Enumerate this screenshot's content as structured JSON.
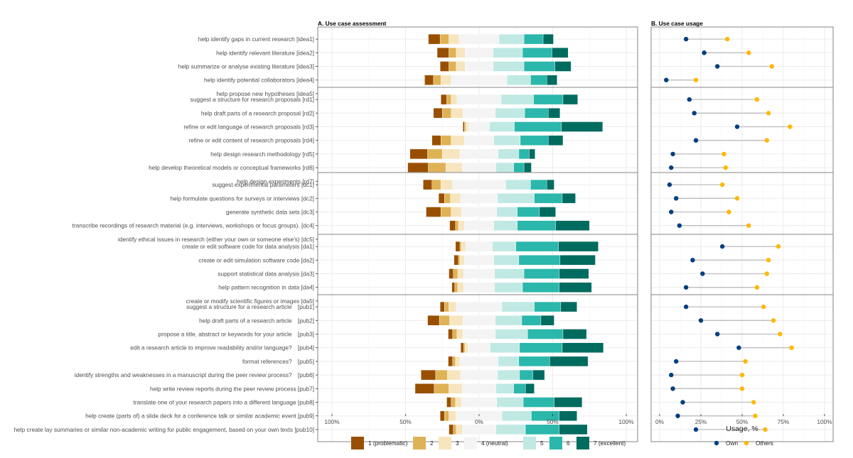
{
  "chart_data": [
    {
      "type": "bar",
      "subtype": "diverging-stacked-likert",
      "title": "A. Use case assessment",
      "xlabel": "",
      "xlim": [
        -100,
        100
      ],
      "xticks": [
        "100%",
        "50%",
        "0%",
        "50%",
        "100%"
      ],
      "legend_position": "bottom",
      "levels": [
        "1 (problematic)",
        "2",
        "3",
        "4 (neutral)",
        "5",
        "6",
        "7 (excellent)"
      ],
      "level_colors": [
        "#994f00",
        "#dfb256",
        "#f6e5bf",
        "#f4f4f4",
        "#c0e9e4",
        "#2bb7ab",
        "#006b5f"
      ],
      "groups": [
        {
          "name": "idea",
          "rows": [
            {
              "label": "help identify gaps in current research [idea1]",
              "values": [
                8,
                6,
                7,
                27,
                17,
                13,
                7
              ]
            },
            {
              "label": "help identify relevant literature [idea2]",
              "values": [
                8,
                5,
                6,
                19,
                20,
                20,
                11
              ]
            },
            {
              "label": "help summarize or analyse existing literature [idea3]",
              "values": [
                6,
                5,
                6,
                19,
                21,
                21,
                11
              ]
            },
            {
              "label": "help identify potential collaborators [idea4]",
              "values": [
                6,
                5,
                7,
                38,
                16,
                11,
                7
              ]
            },
            {
              "label": "help propose new hypotheses [idea5]",
              "values": [
                13,
                9,
                9,
                25,
                14,
                9,
                5
              ]
            }
          ]
        },
        {
          "name": "rd",
          "rows": [
            {
              "label": "suggest a structure for research proposals [rd1]",
              "values": [
                4,
                3,
                4,
                30,
                22,
                20,
                10
              ]
            },
            {
              "label": "help draft parts of a research proposal [rd2]",
              "values": [
                6,
                6,
                8,
                22,
                20,
                16,
                8
              ]
            },
            {
              "label": "refine or edit language of research proposals [rd3]",
              "values": [
                1,
                1,
                2,
                14,
                17,
                32,
                28
              ]
            },
            {
              "label": "refine or edit content of research proposals [rd4]",
              "values": [
                6,
                7,
                9,
                20,
                18,
                19,
                10
              ]
            },
            {
              "label": "help design research methodology [rd5]",
              "values": [
                12,
                10,
                12,
                26,
                14,
                7,
                4
              ]
            },
            {
              "label": "help develop theoretical models or conceptual frameworks [rd6]",
              "values": [
                14,
                12,
                11,
                23,
                12,
                7,
                5
              ]
            },
            {
              "label": "help design experiments [rd7]",
              "values": [
                12,
                11,
                11,
                25,
                15,
                8,
                4
              ]
            }
          ]
        },
        {
          "name": "dc",
          "rows": [
            {
              "label": "suggest experimental parameters [dc1]",
              "values": [
                6,
                6,
                8,
                36,
                17,
                11,
                5
              ]
            },
            {
              "label": "help formulate questions for surveys or interviews [dc2]",
              "values": [
                4,
                4,
                7,
                25,
                25,
                19,
                9
              ]
            },
            {
              "label": "generate synthetic data sets [dc3]",
              "values": [
                10,
                7,
                7,
                24,
                14,
                15,
                11
              ]
            },
            {
              "label": "transcribe recordings of research material (e.g. interviews, workshops or focus groups). [dc4]",
              "values": [
                4,
                2,
                4,
                20,
                16,
                26,
                23
              ]
            },
            {
              "label": "identify ethical issues in research (either your own or someone else's) [dc5]",
              "values": [
                12,
                8,
                8,
                30,
                12,
                10,
                6
              ]
            }
          ]
        },
        {
          "name": "da",
          "rows": [
            {
              "label": "create or edit software code for data analysis [da1]",
              "values": [
                3,
                1,
                3,
                18,
                16,
                29,
                27
              ]
            },
            {
              "label": "create or edit simulation software code [da2]",
              "values": [
                3,
                1,
                3,
                20,
                17,
                28,
                24
              ]
            },
            {
              "label": "support statistical data analysis [da3]",
              "values": [
                3,
                3,
                4,
                21,
                20,
                24,
                20
              ]
            },
            {
              "label": "help pattern recognition in data [da4]",
              "values": [
                2,
                2,
                4,
                21,
                19,
                25,
                22
              ]
            },
            {
              "label": "create or modify scientific figures or images [da5]",
              "values": [
                8,
                4,
                6,
                23,
                16,
                18,
                17
              ]
            }
          ]
        },
        {
          "name": "pub",
          "rows": [
            {
              "label": "suggest a structure for a research article [pub1]",
              "values": [
                3,
                3,
                5,
                31,
                22,
                18,
                11
              ]
            },
            {
              "label": "help draft parts of a research article [pub2]",
              "values": [
                8,
                7,
                9,
                22,
                18,
                13,
                9
              ]
            },
            {
              "label": "propose a title, abstract or keywords for your article [pub3]",
              "values": [
                3,
                3,
                4,
                22,
                22,
                24,
                16
              ]
            },
            {
              "label": "edit a research article to improve readability and/or language? [pub4]",
              "values": [
                2,
                1,
                2,
                15,
                20,
                29,
                28
              ]
            },
            {
              "label": "format references? [pub5]",
              "values": [
                3,
                2,
                3,
                26,
                14,
                21,
                26
              ]
            },
            {
              "label": "identify strengths and weaknesses in a manuscript during the peer review process? [pub6]",
              "values": [
                10,
                8,
                9,
                25,
                15,
                9,
                8
              ]
            },
            {
              "label": "help write review reports during the peer review process [pub7]",
              "values": [
                13,
                10,
                9,
                23,
                12,
                8,
                6
              ]
            },
            {
              "label": "translate one of your research papers into a different language [pub8]",
              "values": [
                3,
                3,
                4,
                24,
                18,
                21,
                19
              ]
            },
            {
              "label": "help create (parts of) a slide deck for a conference talk or similar academic event [pub9]",
              "values": [
                3,
                3,
                5,
                31,
                20,
                19,
                12
              ]
            },
            {
              "label": "help create lay summaries or similar non-academic writing for public engagement, based on your own texts [pub10]",
              "values": [
                3,
                2,
                4,
                23,
                20,
                23,
                19
              ]
            }
          ]
        }
      ]
    },
    {
      "type": "scatter",
      "subtype": "dumbbell",
      "title": "B. Use case usage",
      "xlabel": "Usage, %",
      "ylabel": "",
      "xlim": [
        0,
        100
      ],
      "xticks": [
        "0%",
        "25%",
        "50%",
        "75%",
        "100%"
      ],
      "legend_position": "bottom",
      "series": [
        {
          "name": "Own",
          "color": "#003f7f"
        },
        {
          "name": "Others",
          "color": "#ffb800"
        }
      ],
      "groups": [
        {
          "name": "idea",
          "rows": [
            {
              "id": "idea1",
              "own": 16,
              "others": 41
            },
            {
              "id": "idea2",
              "own": 27,
              "others": 54
            },
            {
              "id": "idea3",
              "own": 35,
              "others": 68
            },
            {
              "id": "idea4",
              "own": 4,
              "others": 22
            },
            {
              "id": "idea5",
              "own": 12,
              "others": 39
            }
          ]
        },
        {
          "name": "rd",
          "rows": [
            {
              "id": "rd1",
              "own": 18,
              "others": 59
            },
            {
              "id": "rd2",
              "own": 21,
              "others": 66
            },
            {
              "id": "rd3",
              "own": 47,
              "others": 79
            },
            {
              "id": "rd4",
              "own": 22,
              "others": 65
            },
            {
              "id": "rd5",
              "own": 8,
              "others": 39
            },
            {
              "id": "rd6",
              "own": 7,
              "others": 40
            },
            {
              "id": "rd7",
              "own": 6,
              "others": 39
            }
          ]
        },
        {
          "name": "dc",
          "rows": [
            {
              "id": "dc1",
              "own": 6,
              "others": 38
            },
            {
              "id": "dc2",
              "own": 10,
              "others": 47
            },
            {
              "id": "dc3",
              "own": 7,
              "others": 42
            },
            {
              "id": "dc4",
              "own": 12,
              "others": 54
            },
            {
              "id": "dc5",
              "own": 4,
              "others": 29
            }
          ]
        },
        {
          "name": "da",
          "rows": [
            {
              "id": "da1",
              "own": 38,
              "others": 72
            },
            {
              "id": "da2",
              "own": 20,
              "others": 66
            },
            {
              "id": "da3",
              "own": 26,
              "others": 65
            },
            {
              "id": "da4",
              "own": 16,
              "others": 59
            },
            {
              "id": "da5",
              "own": 16,
              "others": 59
            }
          ]
        },
        {
          "name": "pub",
          "rows": [
            {
              "id": "pub1",
              "own": 16,
              "others": 63
            },
            {
              "id": "pub2",
              "own": 25,
              "others": 69
            },
            {
              "id": "pub3",
              "own": 35,
              "others": 73
            },
            {
              "id": "pub4",
              "own": 48,
              "others": 80
            },
            {
              "id": "pub5",
              "own": 10,
              "others": 52
            },
            {
              "id": "pub6",
              "own": 7,
              "others": 50
            },
            {
              "id": "pub7",
              "own": 8,
              "others": 50
            },
            {
              "id": "pub8",
              "own": 14,
              "others": 57
            },
            {
              "id": "pub9",
              "own": 11,
              "others": 58
            },
            {
              "id": "pub10",
              "own": 22,
              "others": 64
            }
          ]
        }
      ]
    }
  ]
}
